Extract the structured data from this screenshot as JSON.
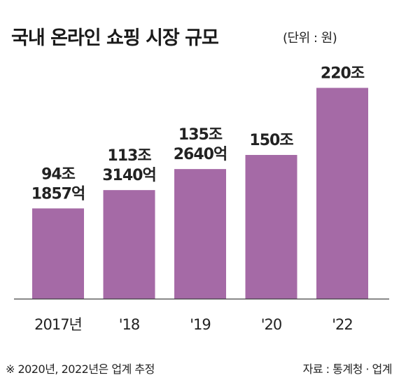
{
  "header": {
    "title": "국내 온라인 쇼핑 시장 규모",
    "unit": "(단위 : 원)"
  },
  "footer": {
    "note": "※ 2020년, 2022년은 업계 추정",
    "source": "자료 : 통계청 · 업계"
  },
  "colors": {
    "bar": "#a56aa6",
    "baseline": "#444444",
    "text": "#222222"
  },
  "chart_data": {
    "type": "bar",
    "title": "국내 온라인 쇼핑 시장 규모",
    "unit": "(단위 : 원)",
    "categories": [
      "2017년",
      "'18",
      "'19",
      "'20",
      "'22"
    ],
    "values": [
      94.1857,
      113.314,
      135.264,
      150,
      220
    ],
    "data_labels": [
      [
        "94조",
        "1857억"
      ],
      [
        "113조",
        "3140억"
      ],
      [
        "135조",
        "2640억"
      ],
      [
        "150조"
      ],
      [
        "220조"
      ]
    ],
    "ylim": [
      0,
      240
    ],
    "grid": false,
    "legend": "none"
  }
}
